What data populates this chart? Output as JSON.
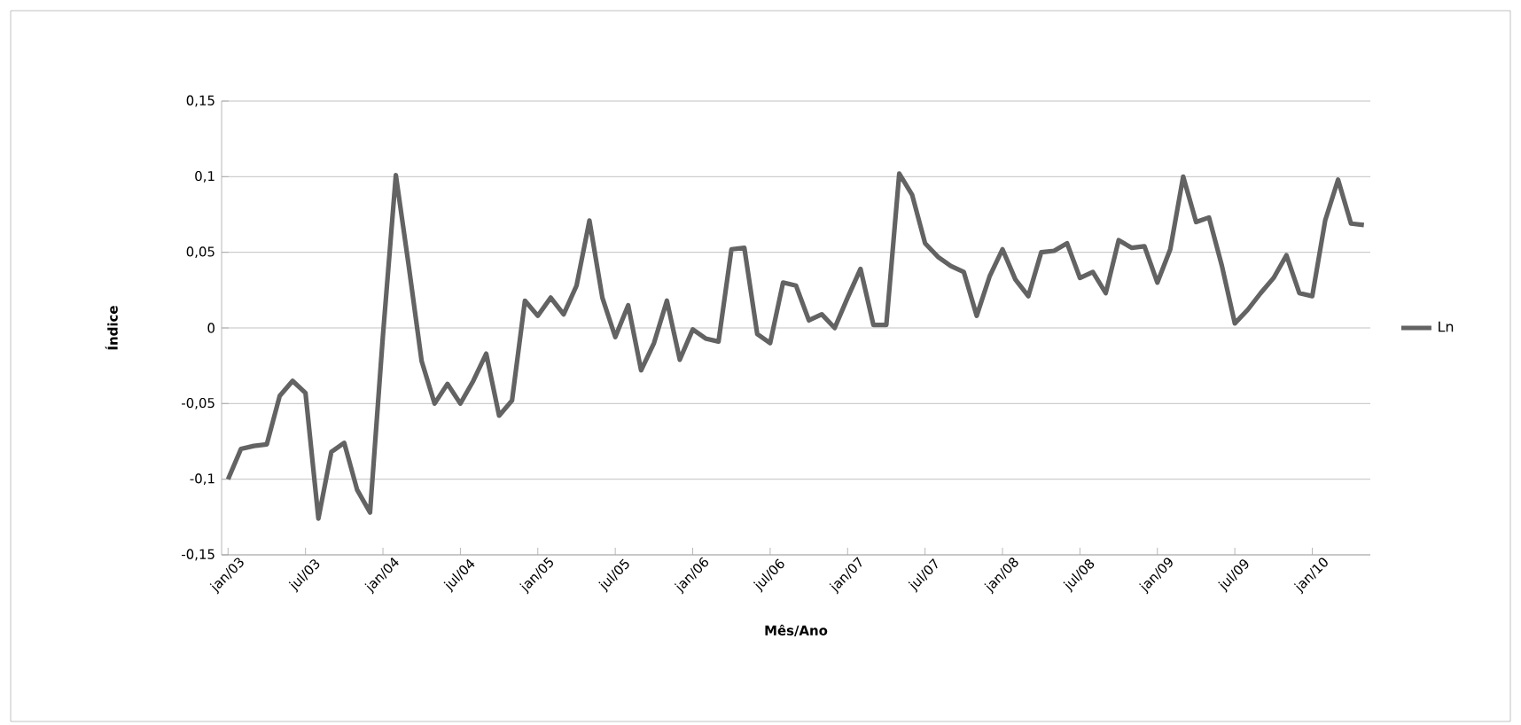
{
  "chart_data": {
    "type": "line",
    "xlabel": "Mês/Ano",
    "ylabel": "Índice",
    "categories": [
      "jan/03",
      null,
      null,
      null,
      null,
      null,
      "jul/03",
      null,
      null,
      null,
      null,
      null,
      "jan/04",
      null,
      null,
      null,
      null,
      null,
      "jul/04",
      null,
      null,
      null,
      null,
      null,
      "jan/05",
      null,
      null,
      null,
      null,
      null,
      "jul/05",
      null,
      null,
      null,
      null,
      null,
      "jan/06",
      null,
      null,
      null,
      null,
      null,
      "jul/06",
      null,
      null,
      null,
      null,
      null,
      "jan/07",
      null,
      null,
      null,
      null,
      null,
      "jul/07",
      null,
      null,
      null,
      null,
      null,
      "jan/08",
      null,
      null,
      null,
      null,
      null,
      "jul/08",
      null,
      null,
      null,
      null,
      null,
      "jan/09",
      null,
      null,
      null,
      null,
      null,
      "jul/09",
      null,
      null,
      null,
      null,
      null,
      "jan/10",
      null,
      null,
      null,
      null
    ],
    "series": [
      {
        "name": "Ln",
        "color": "#636363",
        "values": [
          -0.1,
          -0.08,
          -0.078,
          -0.077,
          -0.045,
          -0.035,
          -0.043,
          -0.126,
          -0.082,
          -0.076,
          -0.107,
          -0.122,
          -0.005,
          0.101,
          0.041,
          -0.022,
          -0.05,
          -0.037,
          -0.05,
          -0.035,
          -0.017,
          -0.058,
          -0.048,
          0.018,
          0.008,
          0.02,
          0.009,
          0.028,
          0.071,
          0.02,
          -0.006,
          0.015,
          -0.028,
          -0.01,
          0.018,
          -0.021,
          -0.001,
          -0.007,
          -0.009,
          0.052,
          0.053,
          -0.004,
          -0.01,
          0.03,
          0.028,
          0.005,
          0.009,
          0.0,
          0.02,
          0.039,
          0.002,
          0.002,
          0.102,
          0.088,
          0.056,
          0.047,
          0.041,
          0.037,
          0.008,
          0.034,
          0.052,
          0.032,
          0.021,
          0.05,
          0.051,
          0.056,
          0.033,
          0.037,
          0.023,
          0.058,
          0.053,
          0.054,
          0.03,
          0.052,
          0.1,
          0.07,
          0.073,
          0.041,
          0.003,
          0.012,
          0.023,
          0.033,
          0.048,
          0.023,
          0.021,
          0.071,
          0.098,
          0.069,
          0.068
        ]
      }
    ],
    "ylim": [
      -0.15,
      0.15
    ],
    "yticks": [
      {
        "value": -0.15,
        "label": "-0,15"
      },
      {
        "value": -0.1,
        "label": "-0,1"
      },
      {
        "value": -0.05,
        "label": "-0,05"
      },
      0,
      {
        "value": 0.05,
        "label": "0,05"
      },
      {
        "value": 0.1,
        "label": "0,1"
      },
      {
        "value": 0.15,
        "label": "0,15"
      }
    ],
    "grid": "y",
    "legend": "right",
    "marker": "none",
    "line_style": "solid"
  }
}
